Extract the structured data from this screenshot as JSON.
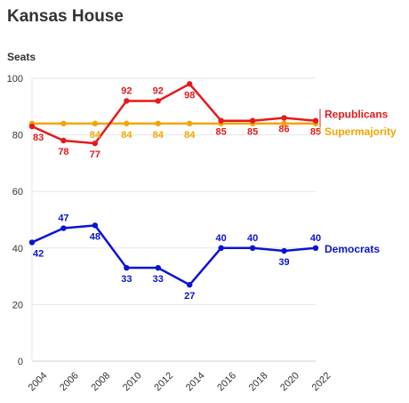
{
  "chart_data": {
    "type": "line",
    "title": "Kansas House",
    "ylabel": "Seats",
    "xlabel": "",
    "x": [
      2004,
      2006,
      2008,
      2010,
      2012,
      2014,
      2016,
      2018,
      2020,
      2022
    ],
    "ylim": [
      0,
      100
    ],
    "yticks": [
      0,
      20,
      40,
      60,
      80,
      100
    ],
    "grid": true,
    "legend": "inline-right",
    "series": [
      {
        "name": "Republicans",
        "color": "#e41a1c",
        "values": [
          83,
          78,
          77,
          92,
          92,
          98,
          85,
          85,
          86,
          85
        ],
        "labels": [
          true,
          true,
          true,
          true,
          true,
          true,
          true,
          true,
          true,
          true
        ]
      },
      {
        "name": "Supermajority",
        "color": "#f5a300",
        "values": [
          84,
          84,
          84,
          84,
          84,
          84,
          84,
          84,
          84,
          84
        ],
        "labels": [
          false,
          false,
          true,
          true,
          true,
          true,
          false,
          false,
          false,
          false
        ]
      },
      {
        "name": "Democrats",
        "color": "#0a14d4",
        "values": [
          42,
          47,
          48,
          33,
          33,
          27,
          40,
          40,
          39,
          40
        ],
        "labels": [
          true,
          true,
          true,
          true,
          true,
          true,
          true,
          true,
          true,
          true
        ]
      }
    ]
  }
}
